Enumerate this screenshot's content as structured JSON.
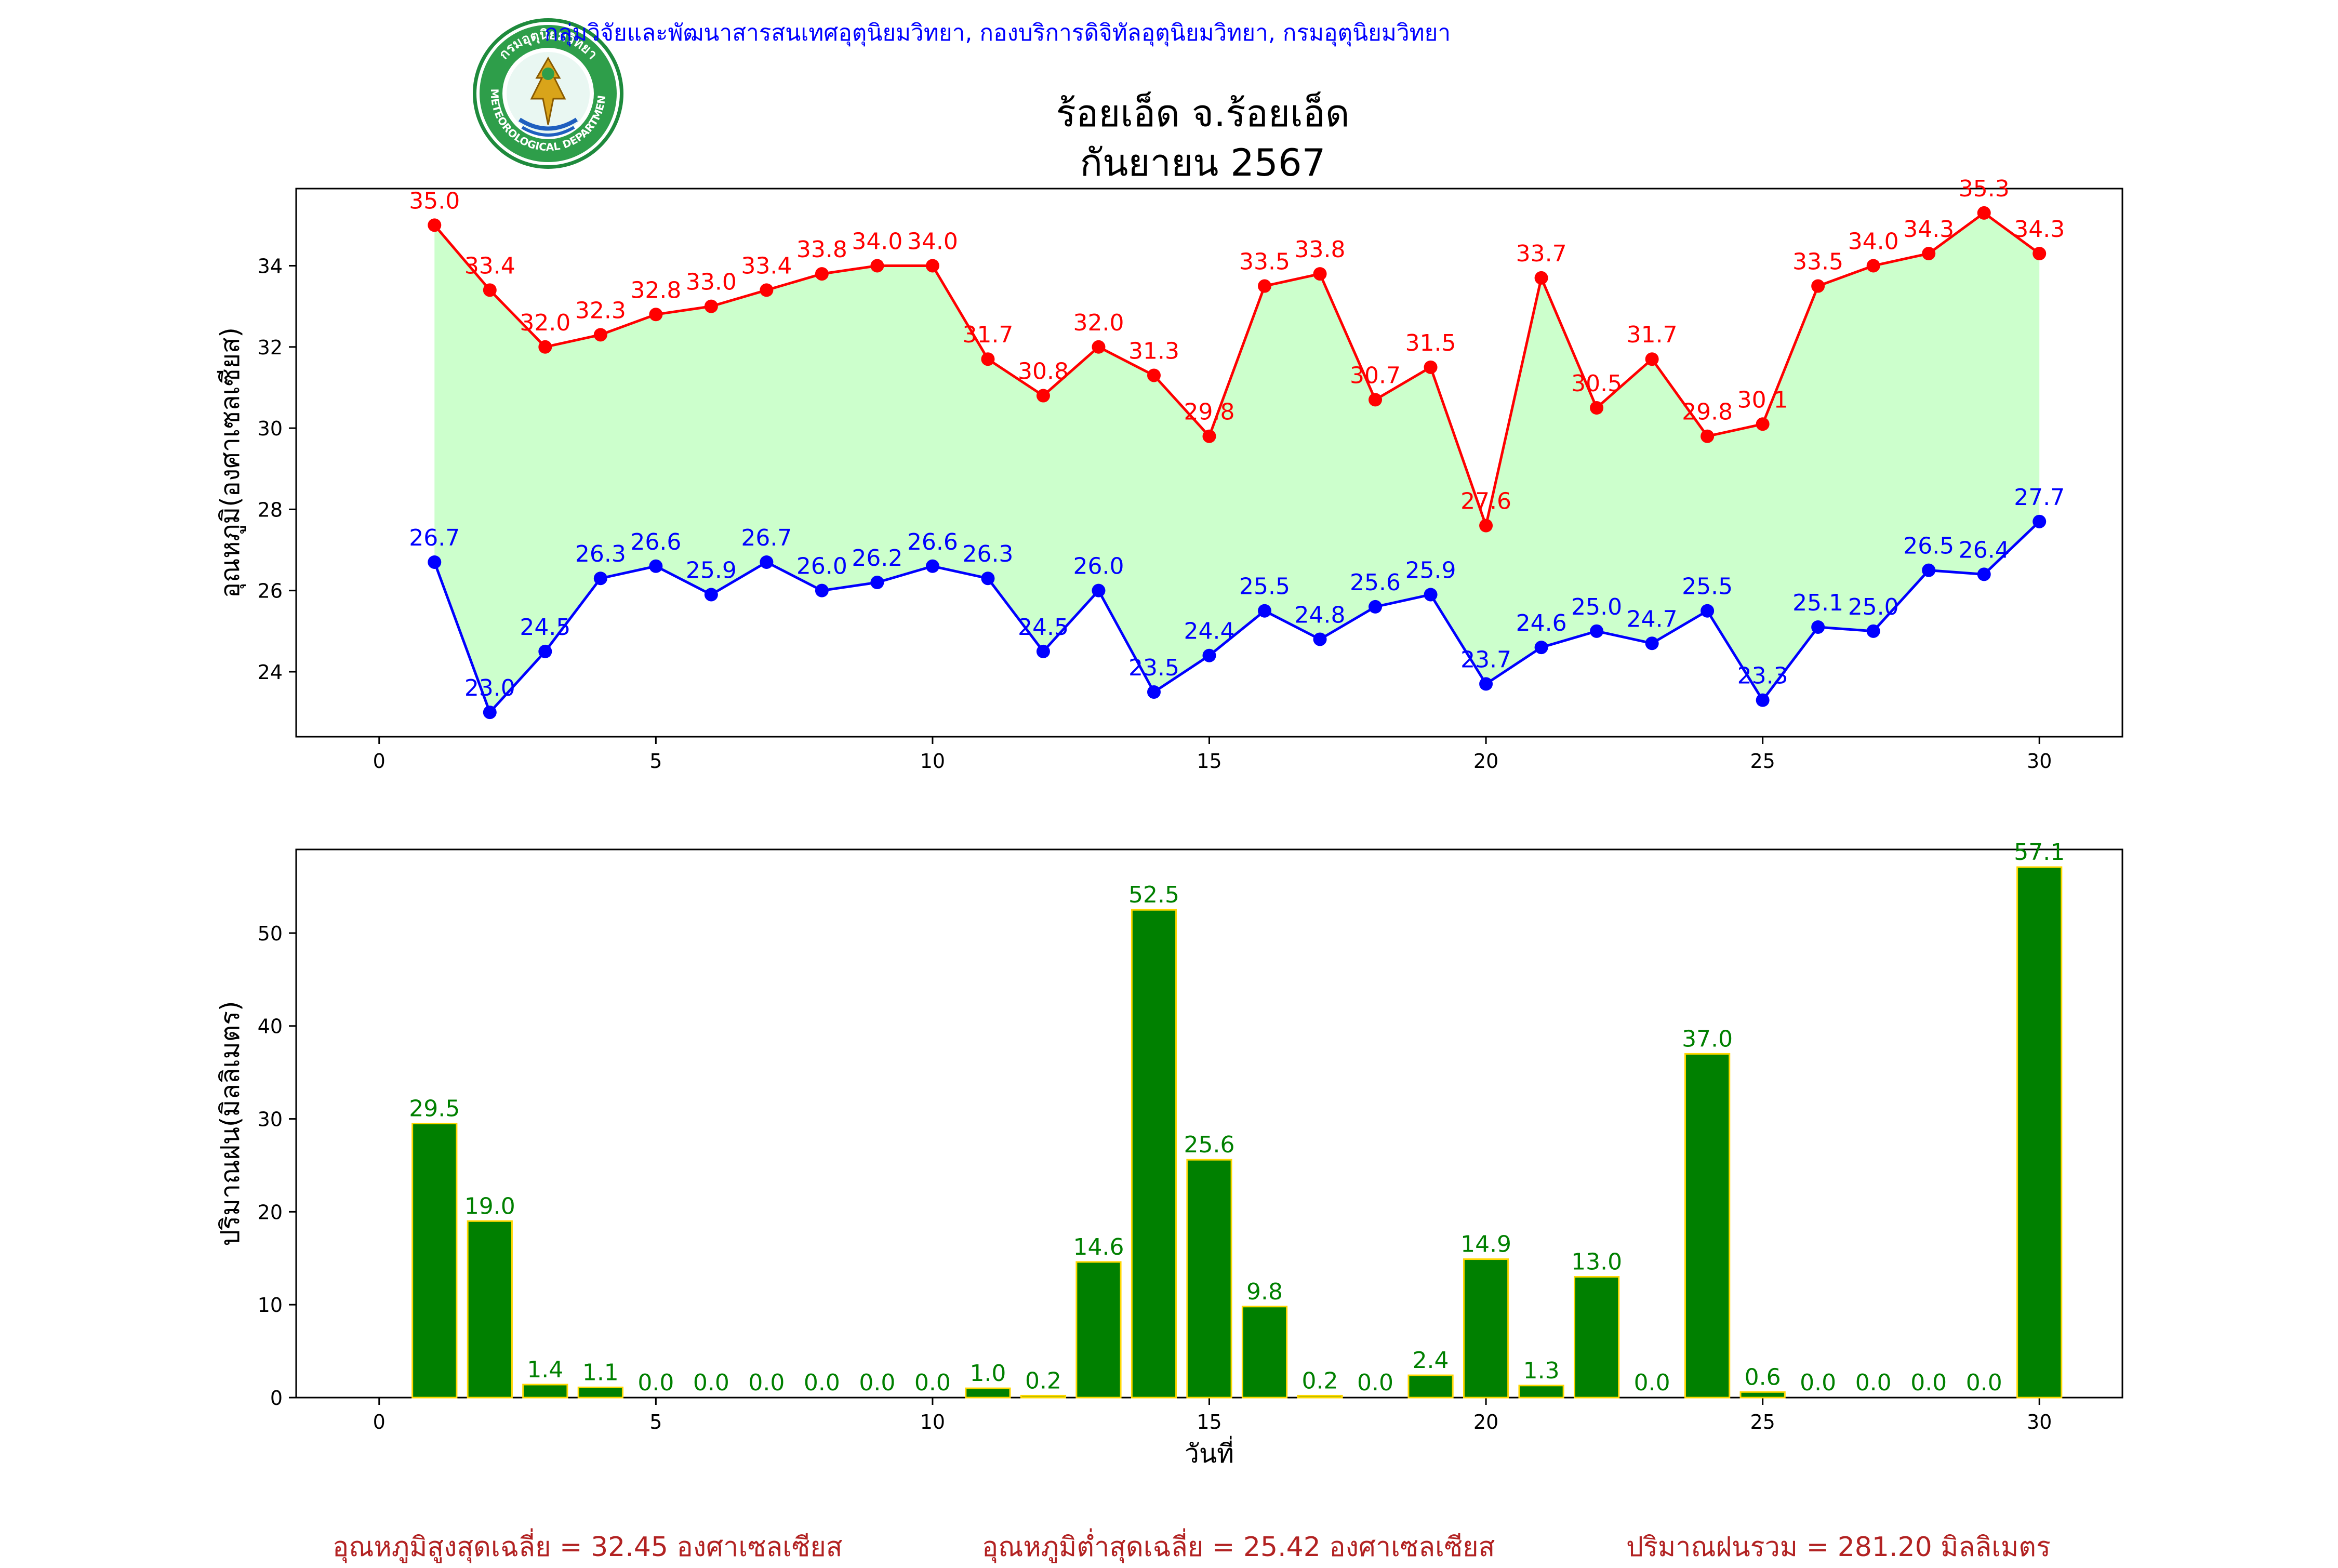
{
  "header": {
    "org_text": "กลุ่มวิจัยและพัฒนาสารสนเทศอุตุนิยมวิทยา, กองบริการดิจิทัลอุตุนิยมวิทยา, กรมอุตุนิยมวิทยา",
    "title_line1": "ร้อยเอ็ด จ.ร้อยเอ็ด",
    "title_line2": "กันยายน 2567",
    "logo_text_top": "กรมอุตุนิยมวิทยา",
    "logo_text_bottom": "METEOROLOGICAL DEPARTMENT"
  },
  "footer": {
    "avg_max": "อุณหภูมิสูงสุดเฉลี่ย = 32.45 องศาเซลเซียส",
    "avg_min": "อุณหภูมิต่ำสุดเฉลี่ย = 25.42 องศาเซลเซียส",
    "rain_total": "ปริมาณฝนรวม = 281.20 มิลลิเมตร"
  },
  "colors": {
    "max_line": "#ff0000",
    "min_line": "#0000ff",
    "fill": "#ccffcc",
    "bar_fill": "#008000",
    "bar_edge": "#ffd700",
    "bar_label": "#008000",
    "footer_text": "#b22222",
    "org_text": "#0000ff"
  },
  "chart_data": [
    {
      "type": "line",
      "ylabel": "อุณหภูมิ(องศาเซลเซียส)",
      "xlabel": "",
      "xlim": [
        -1.5,
        31.5
      ],
      "ylim": [
        22.4,
        35.9
      ],
      "xticks": [
        0,
        5,
        10,
        15,
        20,
        25,
        30
      ],
      "yticks": [
        24,
        26,
        28,
        30,
        32,
        34
      ],
      "x": [
        1,
        2,
        3,
        4,
        5,
        6,
        7,
        8,
        9,
        10,
        11,
        12,
        13,
        14,
        15,
        16,
        17,
        18,
        19,
        20,
        21,
        22,
        23,
        24,
        25,
        26,
        27,
        28,
        29,
        30
      ],
      "series": [
        {
          "key": "max",
          "values": [
            35.0,
            33.4,
            32.0,
            32.3,
            32.8,
            33.0,
            33.4,
            33.8,
            34.0,
            34.0,
            31.7,
            30.8,
            32.0,
            31.3,
            29.8,
            33.5,
            33.8,
            30.7,
            31.5,
            27.6,
            33.7,
            30.5,
            31.7,
            29.8,
            30.1,
            33.5,
            34.0,
            34.3,
            35.3,
            34.3
          ]
        },
        {
          "key": "min",
          "values": [
            26.7,
            23.0,
            24.5,
            26.3,
            26.6,
            25.9,
            26.7,
            26.0,
            26.2,
            26.6,
            26.3,
            24.5,
            26.0,
            23.5,
            24.4,
            25.5,
            24.8,
            25.6,
            25.9,
            23.7,
            24.6,
            25.0,
            24.7,
            25.5,
            23.3,
            25.1,
            25.0,
            26.5,
            26.4,
            27.7
          ]
        }
      ],
      "fill_between": [
        "max",
        "min"
      ],
      "grid": false
    },
    {
      "type": "bar",
      "ylabel": "ปริมาณฝน(มิลลิเมตร)",
      "xlabel": "วันที่",
      "xlim": [
        -1.5,
        31.5
      ],
      "ylim": [
        0,
        59.0
      ],
      "xticks": [
        0,
        5,
        10,
        15,
        20,
        25,
        30
      ],
      "yticks": [
        0,
        10,
        20,
        30,
        40,
        50
      ],
      "x": [
        1,
        2,
        3,
        4,
        5,
        6,
        7,
        8,
        9,
        10,
        11,
        12,
        13,
        14,
        15,
        16,
        17,
        18,
        19,
        20,
        21,
        22,
        23,
        24,
        25,
        26,
        27,
        28,
        29,
        30
      ],
      "values": [
        29.5,
        19.0,
        1.4,
        1.1,
        0.0,
        0.0,
        0.0,
        0.0,
        0.0,
        0.0,
        1.0,
        0.2,
        14.6,
        52.5,
        25.6,
        9.8,
        0.2,
        0.0,
        2.4,
        14.9,
        1.3,
        13.0,
        0.0,
        37.0,
        0.6,
        0.0,
        0.0,
        0.0,
        0.0,
        57.1
      ],
      "grid": false
    }
  ]
}
